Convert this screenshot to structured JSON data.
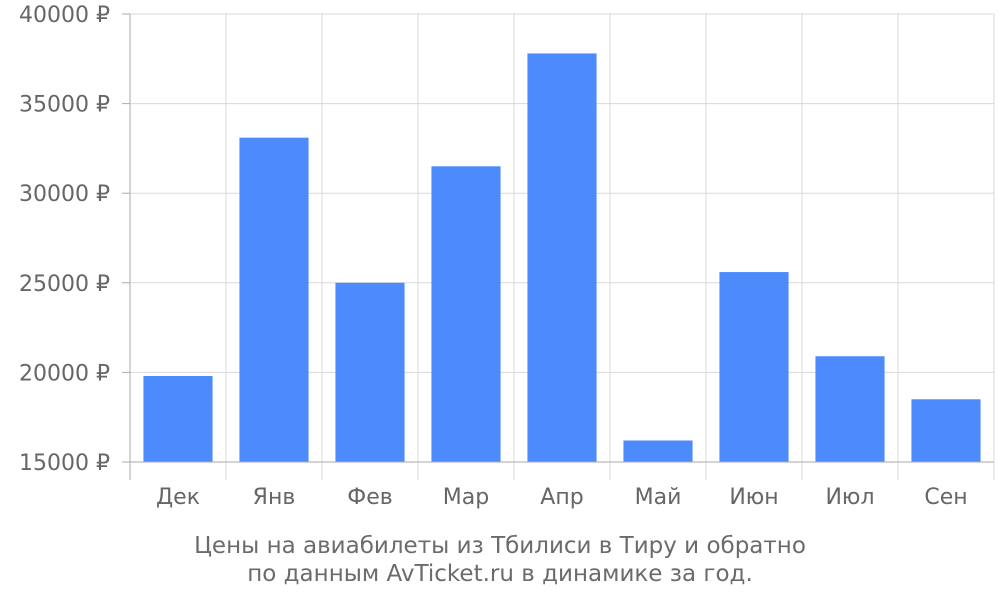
{
  "chart_data": {
    "type": "bar",
    "categories": [
      "Дек",
      "Янв",
      "Фев",
      "Мар",
      "Апр",
      "Май",
      "Июн",
      "Июл",
      "Сен"
    ],
    "series": [
      {
        "values": [
          19800,
          33100,
          25000,
          31500,
          37800,
          16200,
          25600,
          20900,
          18500
        ]
      }
    ],
    "ylim": [
      15000,
      40000
    ],
    "yticks": [
      15000,
      20000,
      25000,
      30000,
      35000,
      40000
    ],
    "ytick_labels": [
      "15000 ₽",
      "20000 ₽",
      "25000 ₽",
      "30000 ₽",
      "35000 ₽",
      "40000 ₽"
    ],
    "grid": true,
    "bar_color": "#4d8bfd",
    "caption_line1": "Цены на авиабилеты из Тбилиси в Тиру и обратно",
    "caption_line2": "по данным AvTicket.ru в динамике за год."
  }
}
